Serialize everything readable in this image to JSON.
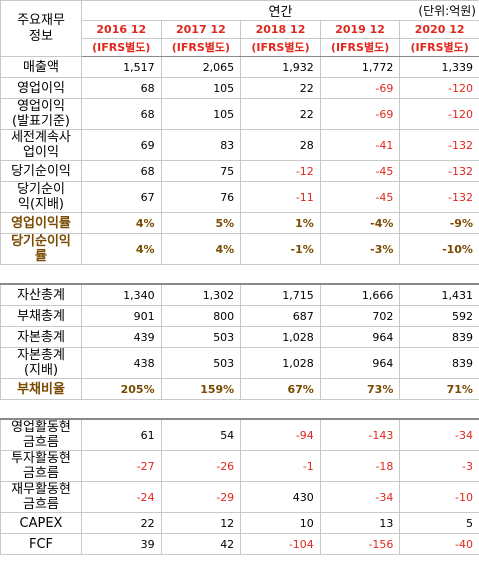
{
  "header": {
    "corner_label": "주요재무\n정보",
    "section_title": "연간",
    "unit_label": "(단위:억원)",
    "years": [
      {
        "year": "2016 12",
        "basis": "(IFRS별도)"
      },
      {
        "year": "2017 12",
        "basis": "(IFRS별도)"
      },
      {
        "year": "2018 12",
        "basis": "(IFRS별도)"
      },
      {
        "year": "2019 12",
        "basis": "(IFRS별도)"
      },
      {
        "year": "2020 12",
        "basis": "(IFRS별도)"
      }
    ]
  },
  "rows": [
    {
      "label": "매출액",
      "values": [
        "1,517",
        "2,065",
        "1,932",
        "1,772",
        "1,339"
      ]
    },
    {
      "label": "영업이익",
      "values": [
        "68",
        "105",
        "22",
        "-69",
        "-120"
      ]
    },
    {
      "label": "영업이익\n(발표기준)",
      "values": [
        "68",
        "105",
        "22",
        "-69",
        "-120"
      ]
    },
    {
      "label": "세전계속사\n업이익",
      "values": [
        "69",
        "83",
        "28",
        "-41",
        "-132"
      ]
    },
    {
      "label": "당기순이익",
      "values": [
        "68",
        "75",
        "-12",
        "-45",
        "-132"
      ]
    },
    {
      "label": "당기순이\n익(지배)",
      "values": [
        "67",
        "76",
        "-11",
        "-45",
        "-132"
      ]
    },
    {
      "label": "영업이익률",
      "values": [
        "4%",
        "5%",
        "1%",
        "-4%",
        "-9%"
      ]
    },
    {
      "label": "당기순이익\n률",
      "values": [
        "4%",
        "4%",
        "-1%",
        "-3%",
        "-10%"
      ]
    },
    {
      "label": "자산총계",
      "values": [
        "1,340",
        "1,302",
        "1,715",
        "1,666",
        "1,431"
      ]
    },
    {
      "label": "부채총계",
      "values": [
        "901",
        "800",
        "687",
        "702",
        "592"
      ]
    },
    {
      "label": "자본총계",
      "values": [
        "439",
        "503",
        "1,028",
        "964",
        "839"
      ]
    },
    {
      "label": "자본총계\n(지배)",
      "values": [
        "438",
        "503",
        "1,028",
        "964",
        "839"
      ]
    },
    {
      "label": "부채비율",
      "values": [
        "205%",
        "159%",
        "67%",
        "73%",
        "71%"
      ]
    },
    {
      "label": "영업활동현\n금흐름",
      "values": [
        "61",
        "54",
        "-94",
        "-143",
        "-34"
      ]
    },
    {
      "label": "투자활동현\n금흐름",
      "values": [
        "-27",
        "-26",
        "-1",
        "-18",
        "-3"
      ]
    },
    {
      "label": "재무활동현\n금흐름",
      "values": [
        "-24",
        "-29",
        "430",
        "-34",
        "-10"
      ]
    },
    {
      "label": "CAPEX",
      "values": [
        "22",
        "12",
        "10",
        "13",
        "5"
      ]
    },
    {
      "label": "FCF",
      "values": [
        "39",
        "42",
        "-104",
        "-156",
        "-40"
      ]
    }
  ],
  "colors": {
    "negative": "#e0281e",
    "year_header": "#e0281e",
    "ratio_text": "#7a4a00"
  }
}
